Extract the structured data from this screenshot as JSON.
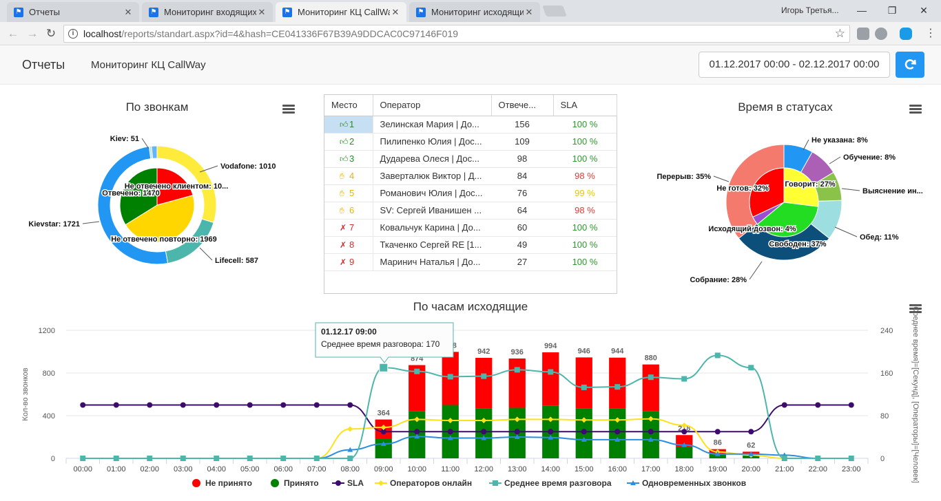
{
  "browser": {
    "tabs": [
      {
        "title": "Отчеты",
        "active": false
      },
      {
        "title": "Мониторинг входящих",
        "active": false
      },
      {
        "title": "Мониторинг КЦ CallWay",
        "active": true
      },
      {
        "title": "Мониторинг исходящих",
        "active": false
      }
    ],
    "user": "Игорь Третья...",
    "url_host": "localhost",
    "url_path": "/reports/standart.aspx?id=4&hash=CE041336F67B39A9DDCAC0C97146F019"
  },
  "navbar": {
    "brand": "Отчеты",
    "link": "Мониторинг КЦ CallWay",
    "date_range": "01.12.2017 00:00 - 02.12.2017 00:00"
  },
  "calls_widget": {
    "title": "По звонкам",
    "outer": [
      {
        "label": "Vodafone: 1010",
        "value": 1010,
        "color": "#ffeb3b"
      },
      {
        "label": "Lifecell: 587",
        "value": 587,
        "color": "#4db6ac"
      },
      {
        "label": "Kievstar: 1721",
        "value": 1721,
        "color": "#2196f3"
      },
      {
        "label": "",
        "value": 22,
        "color": "#bbdefb"
      },
      {
        "label": "Kiev: 51",
        "value": 51,
        "color": "#64b5f6"
      }
    ],
    "inner": [
      {
        "label": "Не отвечено клиентом: 10...",
        "value": 900,
        "color": "#ff0000"
      },
      {
        "label": "Не отвечено повторно: 1969",
        "value": 1969,
        "color": "#ffd600"
      },
      {
        "label": "Отвечено: 1470",
        "value": 1470,
        "color": "#008000"
      }
    ]
  },
  "operators_table": {
    "columns": [
      "Место",
      "Оператор",
      "Отвече...",
      "SLA"
    ],
    "rows": [
      {
        "place": "1",
        "operator": "Зелинская Мария | До...",
        "answered": "156",
        "sla": "100 %",
        "level": "good"
      },
      {
        "place": "2",
        "operator": "Пилипенко Юлия | Дос...",
        "answered": "109",
        "sla": "100 %",
        "level": "good"
      },
      {
        "place": "3",
        "operator": "Дударева Олеся | Дос...",
        "answered": "98",
        "sla": "100 %",
        "level": "good"
      },
      {
        "place": "4",
        "operator": "Заверталюк Виктор | Д...",
        "answered": "84",
        "sla": "98 %",
        "level": "mid"
      },
      {
        "place": "5",
        "operator": "Романович Юлия | Дос...",
        "answered": "76",
        "sla": "99 %",
        "level": "mid"
      },
      {
        "place": "6",
        "operator": "SV: Сергей Иванишен ...",
        "answered": "64",
        "sla": "98 %",
        "level": "mid"
      },
      {
        "place": "7",
        "operator": "Ковальчук Карина | До...",
        "answered": "60",
        "sla": "100 %",
        "level": "bad"
      },
      {
        "place": "8",
        "operator": "Ткаченко Сергей RE [1...",
        "answered": "49",
        "sla": "100 %",
        "level": "bad"
      },
      {
        "place": "9",
        "operator": "Маринич Наталья | До...",
        "answered": "27",
        "sla": "100 %",
        "level": "bad"
      }
    ],
    "colors": {
      "good": "#2a8a2a",
      "mid": "#e6b800",
      "bad": "#d32f2f",
      "sla_green": "#2a9a2a",
      "sla_red": "#e53935",
      "sla_yellow": "#e6c800"
    }
  },
  "status_widget": {
    "title": "Время в статусах",
    "outer": [
      {
        "label": "Не указана: 8%",
        "value": 8,
        "color": "#2196f3"
      },
      {
        "label": "Обучение: 8%",
        "value": 8,
        "color": "#ab5fb5"
      },
      {
        "label": "Выяснение ин...",
        "value": 8,
        "color": "#8bc34a"
      },
      {
        "label": "Обед: 11%",
        "value": 11,
        "color": "#9ddfe0"
      },
      {
        "label": "Собрание: 28%",
        "value": 28,
        "color": "#0b4f7a"
      },
      {
        "label": "Перерыв: 35%",
        "value": 35,
        "color": "#f47a6e"
      }
    ],
    "inner": [
      {
        "label": "Говорит: 27%",
        "value": 27,
        "color": "#ffff33"
      },
      {
        "label": "Свободен: 37%",
        "value": 37,
        "color": "#22dd22"
      },
      {
        "label": "Исходящий дозвон: 4%",
        "value": 4,
        "color": "#9b4fd0"
      },
      {
        "label": "Не готов: 32%",
        "value": 32,
        "color": "#ff0000"
      }
    ]
  },
  "chart_data": {
    "type": "bar",
    "title": "По часам исходящие",
    "ylabel": "Кол-во звонков",
    "y2label": "[Среднее время]=[Секунд], [Операторы]=[Человек]",
    "ylim": [
      0,
      1200
    ],
    "yticks": [
      "0",
      "400",
      "800",
      "1200"
    ],
    "y2lim": [
      0,
      240
    ],
    "y2ticks": [
      "0",
      "80",
      "160",
      "240"
    ],
    "categories": [
      "00:00",
      "01:00",
      "02:00",
      "03:00",
      "04:00",
      "05:00",
      "06:00",
      "07:00",
      "08:00",
      "09:00",
      "10:00",
      "11:00",
      "12:00",
      "13:00",
      "14:00",
      "15:00",
      "16:00",
      "17:00",
      "18:00",
      "19:00",
      "20:00",
      "21:00",
      "22:00",
      "23:00"
    ],
    "totals": [
      null,
      null,
      null,
      null,
      null,
      null,
      null,
      null,
      null,
      "364",
      "874",
      "998",
      "942",
      "936",
      "994",
      "946",
      "944",
      "880",
      "218",
      "86",
      "62",
      null,
      null,
      null
    ],
    "series": [
      {
        "name": "Не принято",
        "kind": "bar",
        "axis": "left",
        "color": "#ff0000",
        "values": [
          0,
          0,
          0,
          0,
          0,
          0,
          0,
          0,
          0,
          180,
          434,
          498,
          472,
          462,
          502,
          476,
          474,
          440,
          108,
          46,
          34,
          0,
          0,
          0
        ]
      },
      {
        "name": "Принято",
        "kind": "bar",
        "axis": "left",
        "color": "#008000",
        "values": [
          0,
          0,
          0,
          0,
          0,
          0,
          0,
          0,
          0,
          184,
          440,
          500,
          470,
          474,
          492,
          470,
          470,
          440,
          110,
          40,
          28,
          0,
          0,
          0
        ]
      },
      {
        "name": "SLA",
        "kind": "line",
        "axis": "right",
        "color": "#3d0a6e",
        "values": [
          100,
          100,
          100,
          100,
          100,
          100,
          100,
          100,
          100,
          50,
          50,
          50,
          50,
          50,
          50,
          50,
          50,
          50,
          50,
          50,
          50,
          100,
          100,
          100
        ]
      },
      {
        "name": "Операторов онлайн",
        "kind": "line",
        "axis": "right",
        "color": "#ffe11a",
        "values": [
          0,
          0,
          0,
          0,
          0,
          0,
          0,
          0,
          55,
          58,
          73,
          71,
          71,
          73,
          73,
          72,
          72,
          74,
          62,
          12,
          6,
          0,
          0,
          0
        ]
      },
      {
        "name": "Среднее время разговора",
        "kind": "line",
        "axis": "right",
        "color": "#4db6ac",
        "values": [
          0,
          0,
          0,
          0,
          0,
          0,
          0,
          0,
          0,
          170,
          163,
          153,
          154,
          166,
          162,
          133,
          134,
          152,
          149,
          193,
          170,
          0,
          0,
          0
        ]
      },
      {
        "name": "Одновременных звонков",
        "kind": "line",
        "axis": "right",
        "color": "#2b8ee0",
        "values": [
          0,
          0,
          0,
          0,
          0,
          0,
          0,
          0,
          16,
          27,
          41,
          38,
          38,
          40,
          39,
          35,
          35,
          35,
          25,
          8,
          8,
          6,
          0,
          0
        ]
      }
    ],
    "tooltip": {
      "title": "01.12.17 09:00",
      "text": "Среднее время разговора: 170",
      "index": 9,
      "series": 4
    }
  }
}
